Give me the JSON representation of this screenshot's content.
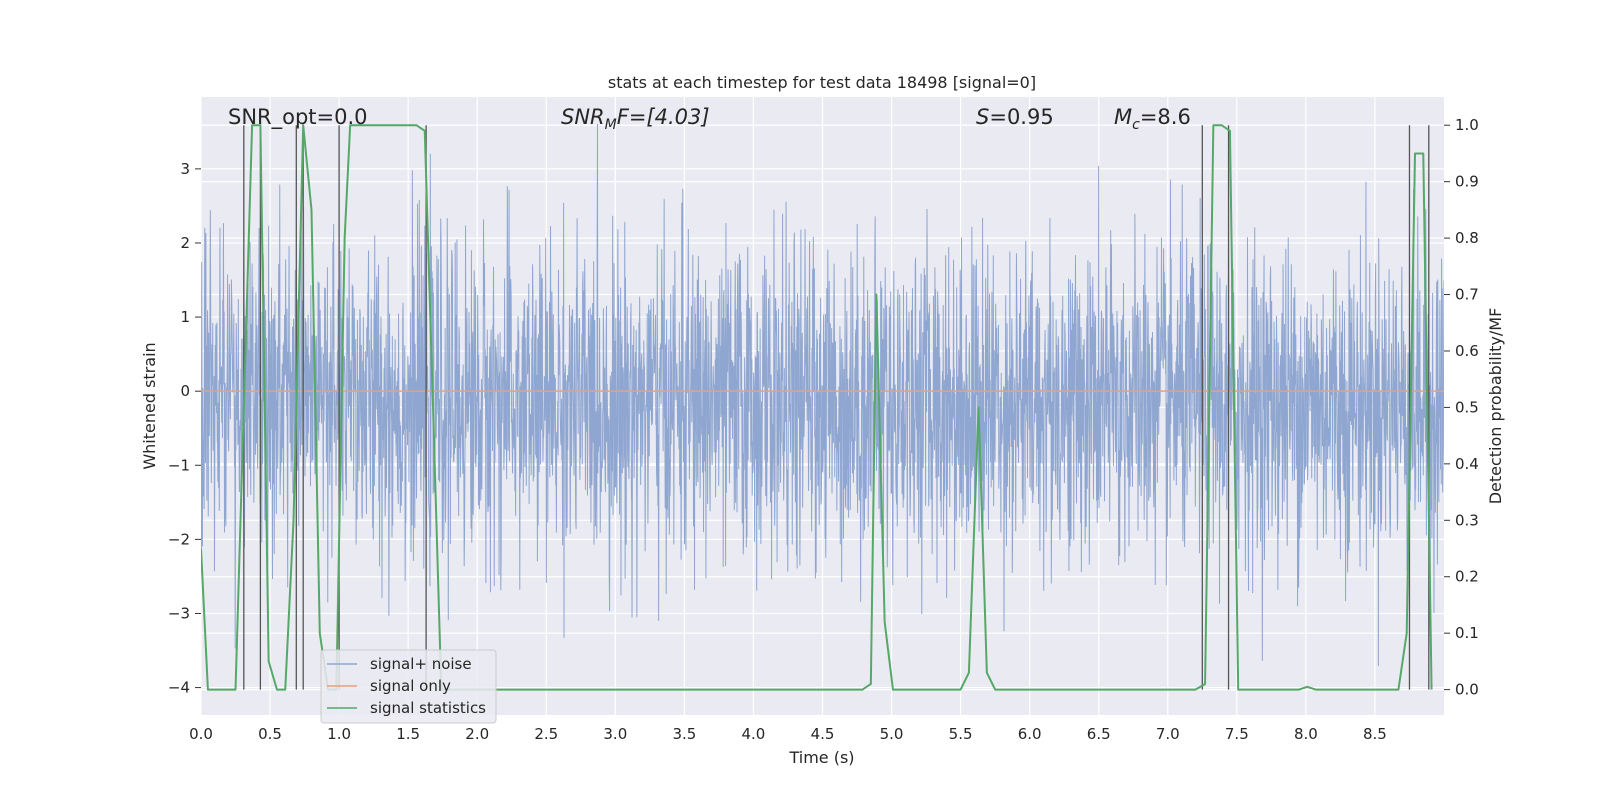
{
  "chart_data": {
    "type": "line",
    "title": "stats at each timestep for test data 18498 [signal=0]",
    "xlabel": "Time (s)",
    "ylabel": "Whitened strain",
    "ylabel_right": "Detection probability/MF",
    "xlim": [
      0.0,
      9.0
    ],
    "ylim": [
      -4.37,
      3.97
    ],
    "ylim_right": [
      -0.045,
      1.05
    ],
    "x_ticks": [
      "0.0",
      "0.5",
      "1.0",
      "1.5",
      "2.0",
      "2.5",
      "3.0",
      "3.5",
      "4.0",
      "4.5",
      "5.0",
      "5.5",
      "6.0",
      "6.5",
      "7.0",
      "7.5",
      "8.0",
      "8.5"
    ],
    "x_tick_values": [
      0.0,
      0.5,
      1.0,
      1.5,
      2.0,
      2.5,
      3.0,
      3.5,
      4.0,
      4.5,
      5.0,
      5.5,
      6.0,
      6.5,
      7.0,
      7.5,
      8.0,
      8.5
    ],
    "y_ticks": [
      "−4",
      "−3",
      "−2",
      "−1",
      "0",
      "1",
      "2",
      "3"
    ],
    "y_tick_values": [
      -4,
      -3,
      -2,
      -1,
      0,
      1,
      2,
      3
    ],
    "y2_ticks": [
      "0.0",
      "0.1",
      "0.2",
      "0.3",
      "0.4",
      "0.5",
      "0.6",
      "0.7",
      "0.8",
      "0.9",
      "1.0"
    ],
    "y2_tick_values": [
      0.0,
      0.1,
      0.2,
      0.3,
      0.4,
      0.5,
      0.6,
      0.7,
      0.8,
      0.9,
      1.0
    ],
    "annotations": {
      "snr_opt": "SNR_opt=0.0",
      "snr_mf_main": "SNR",
      "snr_mf_sub": "M",
      "snr_mf_rest": "F=[4.03]",
      "s_main": "S",
      "s_rest": "=0.95",
      "mc_main": "M",
      "mc_sub": "c",
      "mc_rest": "=8.6"
    },
    "legend": {
      "position": "lower-left",
      "entries": [
        {
          "label": "signal+ noise",
          "color": "#8fa6d0"
        },
        {
          "label": "signal only",
          "color": "#e8a07e"
        },
        {
          "label": "signal statistics",
          "color": "#55a868"
        }
      ]
    },
    "series": [
      {
        "name": "signal+ noise",
        "axis": "left",
        "description": "whitened noise, approx. gaussian, spikes up to ±3.6",
        "noise_envelope": [
          -1.7,
          1.3
        ],
        "spike_range": [
          -4.1,
          3.6
        ]
      },
      {
        "name": "signal only",
        "axis": "left",
        "x": [
          0.0,
          9.0
        ],
        "y": [
          0.0,
          0.0
        ]
      },
      {
        "name": "signal statistics",
        "axis": "right",
        "x": [
          0.0,
          0.05,
          0.25,
          0.31,
          0.37,
          0.43,
          0.49,
          0.55,
          0.61,
          0.67,
          0.74,
          0.8,
          0.86,
          0.92,
          0.98,
          1.04,
          1.08,
          1.14,
          1.5,
          1.56,
          1.62,
          1.68,
          1.74,
          4.0,
          4.79,
          4.85,
          4.89,
          4.95,
          5.01,
          5.07,
          5.5,
          5.56,
          5.63,
          5.69,
          5.75,
          5.81,
          7.2,
          7.27,
          7.33,
          7.39,
          7.45,
          7.51,
          7.95,
          8.01,
          8.07,
          8.67,
          8.73,
          8.79,
          8.85,
          8.91
        ],
        "y": [
          0.25,
          0.0,
          0.0,
          0.5,
          1.0,
          1.0,
          0.05,
          0.0,
          0.0,
          0.3,
          1.0,
          0.85,
          0.1,
          0.0,
          0.0,
          0.8,
          1.0,
          1.0,
          1.0,
          1.0,
          0.99,
          0.5,
          0.0,
          0.0,
          0.0,
          0.01,
          0.7,
          0.12,
          0.0,
          0.0,
          0.0,
          0.03,
          0.5,
          0.03,
          0.0,
          0.0,
          0.0,
          0.01,
          1.0,
          1.0,
          0.99,
          0.0,
          0.0,
          0.005,
          0.0,
          0.0,
          0.1,
          0.95,
          0.95,
          0.0
        ]
      }
    ],
    "vertical_markers": [
      0.31,
      0.43,
      0.69,
      0.74,
      1.0,
      1.63,
      7.25,
      7.44,
      8.75,
      8.89
    ]
  }
}
